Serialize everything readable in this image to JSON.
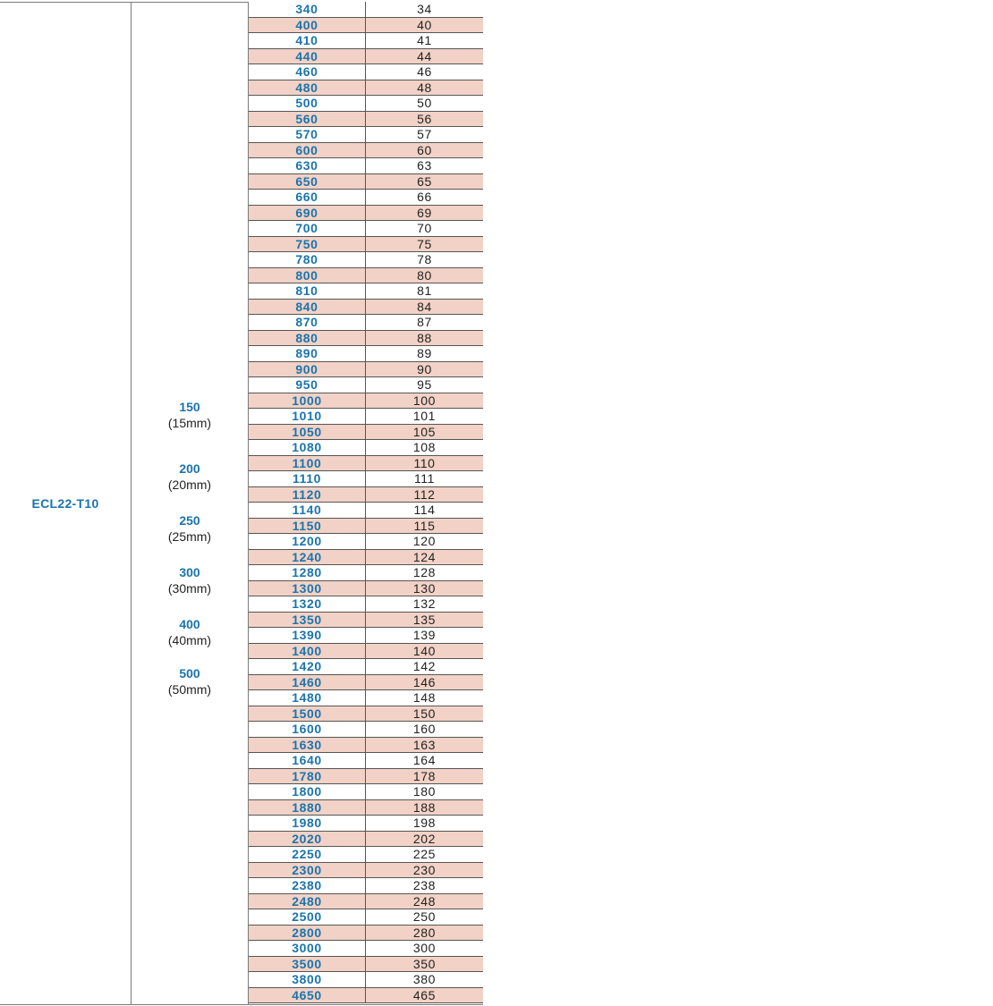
{
  "model": "ECL22-T10",
  "pitches": [
    {
      "value": "150",
      "mm": "(15mm)"
    },
    {
      "value": "200",
      "mm": "(20mm)"
    },
    {
      "value": "250",
      "mm": "(25mm)"
    },
    {
      "value": "300",
      "mm": "(30mm)"
    },
    {
      "value": "400",
      "mm": "(40mm)"
    },
    {
      "value": "500",
      "mm": "(50mm)"
    }
  ],
  "rows": [
    {
      "length": "340",
      "teeth": "34"
    },
    {
      "length": "400",
      "teeth": "40"
    },
    {
      "length": "410",
      "teeth": "41"
    },
    {
      "length": "440",
      "teeth": "44"
    },
    {
      "length": "460",
      "teeth": "46"
    },
    {
      "length": "480",
      "teeth": "48"
    },
    {
      "length": "500",
      "teeth": "50"
    },
    {
      "length": "560",
      "teeth": "56"
    },
    {
      "length": "570",
      "teeth": "57"
    },
    {
      "length": "600",
      "teeth": "60"
    },
    {
      "length": "630",
      "teeth": "63"
    },
    {
      "length": "650",
      "teeth": "65"
    },
    {
      "length": "660",
      "teeth": "66"
    },
    {
      "length": "690",
      "teeth": "69"
    },
    {
      "length": "700",
      "teeth": "70"
    },
    {
      "length": "750",
      "teeth": "75"
    },
    {
      "length": "780",
      "teeth": "78"
    },
    {
      "length": "800",
      "teeth": "80"
    },
    {
      "length": "810",
      "teeth": "81"
    },
    {
      "length": "840",
      "teeth": "84"
    },
    {
      "length": "870",
      "teeth": "87"
    },
    {
      "length": "880",
      "teeth": "88"
    },
    {
      "length": "890",
      "teeth": "89"
    },
    {
      "length": "900",
      "teeth": "90"
    },
    {
      "length": "950",
      "teeth": "95"
    },
    {
      "length": "1000",
      "teeth": "100"
    },
    {
      "length": "1010",
      "teeth": "101"
    },
    {
      "length": "1050",
      "teeth": "105"
    },
    {
      "length": "1080",
      "teeth": "108"
    },
    {
      "length": "1100",
      "teeth": "110"
    },
    {
      "length": "1110",
      "teeth": "111"
    },
    {
      "length": "1120",
      "teeth": "112"
    },
    {
      "length": "1140",
      "teeth": "114"
    },
    {
      "length": "1150",
      "teeth": "115"
    },
    {
      "length": "1200",
      "teeth": "120"
    },
    {
      "length": "1240",
      "teeth": "124"
    },
    {
      "length": "1280",
      "teeth": "128"
    },
    {
      "length": "1300",
      "teeth": "130"
    },
    {
      "length": "1320",
      "teeth": "132"
    },
    {
      "length": "1350",
      "teeth": "135"
    },
    {
      "length": "1390",
      "teeth": "139"
    },
    {
      "length": "1400",
      "teeth": "140"
    },
    {
      "length": "1420",
      "teeth": "142"
    },
    {
      "length": "1460",
      "teeth": "146"
    },
    {
      "length": "1480",
      "teeth": "148"
    },
    {
      "length": "1500",
      "teeth": "150"
    },
    {
      "length": "1600",
      "teeth": "160"
    },
    {
      "length": "1630",
      "teeth": "163"
    },
    {
      "length": "1640",
      "teeth": "164"
    },
    {
      "length": "1780",
      "teeth": "178"
    },
    {
      "length": "1800",
      "teeth": "180"
    },
    {
      "length": "1880",
      "teeth": "188"
    },
    {
      "length": "1980",
      "teeth": "198"
    },
    {
      "length": "2020",
      "teeth": "202"
    },
    {
      "length": "2250",
      "teeth": "225"
    },
    {
      "length": "2300",
      "teeth": "230"
    },
    {
      "length": "2380",
      "teeth": "238"
    },
    {
      "length": "2480",
      "teeth": "248"
    },
    {
      "length": "2500",
      "teeth": "250"
    },
    {
      "length": "2800",
      "teeth": "280"
    },
    {
      "length": "3000",
      "teeth": "300"
    },
    {
      "length": "3500",
      "teeth": "350"
    },
    {
      "length": "3800",
      "teeth": "380"
    },
    {
      "length": "4650",
      "teeth": "465"
    }
  ],
  "colors": {
    "accent_blue": "#1a74ad",
    "row_alt_pink": "#f2d2c6",
    "text_dark": "#222222"
  }
}
